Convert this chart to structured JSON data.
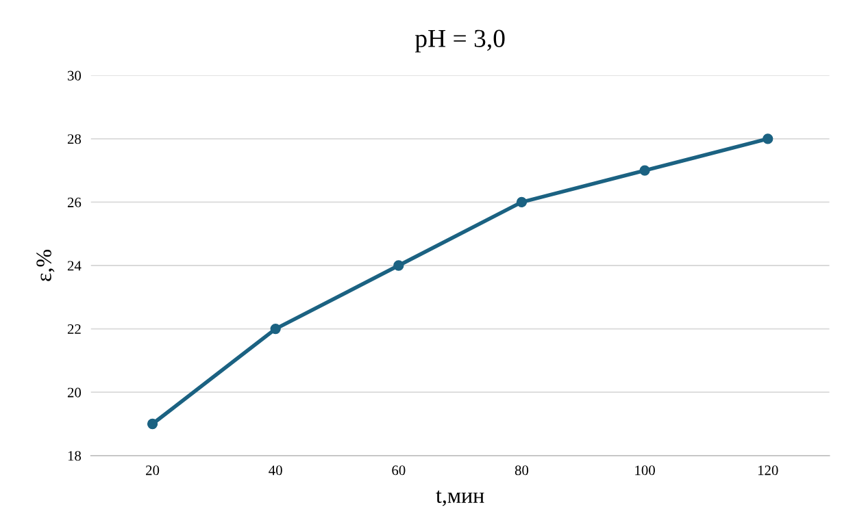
{
  "chart_data": {
    "type": "line",
    "title": "pH = 3,0",
    "xlabel": "t,мин",
    "ylabel": "ε,%",
    "categories": [
      "20",
      "40",
      "60",
      "80",
      "100",
      "120"
    ],
    "series": [
      {
        "color": "#1b6282",
        "values": [
          19,
          22,
          24,
          26,
          27,
          28
        ]
      }
    ],
    "ylim": [
      18,
      30
    ],
    "yticks": [
      18,
      20,
      22,
      24,
      26,
      28,
      30
    ],
    "grid": "y",
    "marker": "circle",
    "line_style": "solid"
  }
}
